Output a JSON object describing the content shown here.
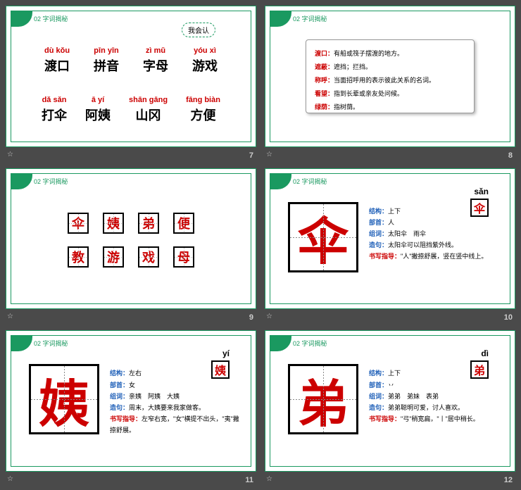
{
  "section_label": "02 字词揭秘",
  "slides": {
    "s7": {
      "page": "7",
      "speech": "我会认",
      "row1": [
        {
          "p": "dù kǒu",
          "h": "渡口"
        },
        {
          "p": "pīn yīn",
          "h": "拼音"
        },
        {
          "p": "zì mǔ",
          "h": "字母"
        },
        {
          "p": "yóu xì",
          "h": "游戏"
        }
      ],
      "row2": [
        {
          "p": "dǎ sǎn",
          "h": "打伞"
        },
        {
          "p": "ā yí",
          "h": "阿姨"
        },
        {
          "p": "shān gāng",
          "h": "山冈"
        },
        {
          "p": "fāng biàn",
          "h": "方便"
        }
      ]
    },
    "s8": {
      "page": "8",
      "defs": [
        {
          "t": "渡口：",
          "d": "有船或筏子摆渡的地方。"
        },
        {
          "t": "遮蔽：",
          "d": "遮挡；拦挡。"
        },
        {
          "t": "称呼：",
          "d": "当面招呼用的表示彼此关系的名词。"
        },
        {
          "t": "看望：",
          "d": "指到长辈或亲友处问候。"
        },
        {
          "t": "绿荫：",
          "d": "指树荫。"
        }
      ]
    },
    "s9": {
      "page": "9",
      "chars_r1": [
        "伞",
        "姨",
        "弟",
        "便"
      ],
      "chars_r2": [
        "教",
        "游",
        "戏",
        "母"
      ]
    },
    "s10": {
      "page": "10",
      "pinyin": "sǎn",
      "char": "伞",
      "lines": [
        {
          "l": "结构：",
          "v": "上下"
        },
        {
          "l": "部首：",
          "v": "人"
        },
        {
          "l": "组词：",
          "v": "太阳伞　雨伞"
        },
        {
          "l": "造句：",
          "v": "太阳伞可以阻挡紫外线。"
        },
        {
          "l2": "书写指导：",
          "v": "\"人\"撇捺舒展，竖在竖中线上。"
        }
      ]
    },
    "s11": {
      "page": "11",
      "pinyin": "yí",
      "char": "姨",
      "lines": [
        {
          "l": "结构：",
          "v": "左右"
        },
        {
          "l": "部首：",
          "v": "女"
        },
        {
          "l": "组词：",
          "v": "亲姨　阿姨　大姨"
        },
        {
          "l": "造句：",
          "v": "周末，大姨要来我家做客。"
        },
        {
          "l2": "书写指导：",
          "v": "左窄右宽，\"女\"横提不出头，\"夷\"撇捺舒展。"
        }
      ]
    },
    "s12": {
      "page": "12",
      "pinyin": "dì",
      "char": "弟",
      "lines": [
        {
          "l": "结构：",
          "v": "上下"
        },
        {
          "l": "部首：",
          "v": "丷"
        },
        {
          "l": "组词：",
          "v": "弟弟　弟妹　表弟"
        },
        {
          "l": "造句：",
          "v": "弟弟聪明可爱，讨人喜欢。"
        },
        {
          "l2": "书写指导：",
          "v": "\"弓\"稍宽扁，\"丨\"居中稍长。"
        }
      ]
    }
  }
}
